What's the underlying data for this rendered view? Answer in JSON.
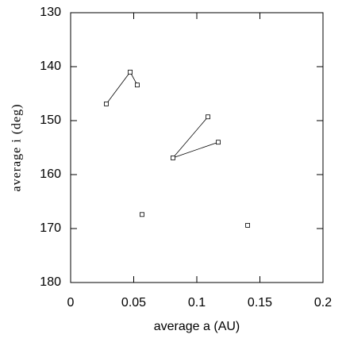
{
  "chart_data": {
    "type": "scatter",
    "x_label": "average a (AU)",
    "y_label": "average i (deg)",
    "xlim": [
      0,
      0.2
    ],
    "xticks": [
      0,
      0.05,
      0.1,
      0.15,
      0.2
    ],
    "ylim": [
      180,
      130
    ],
    "yticks": [
      130,
      140,
      150,
      160,
      170,
      180
    ],
    "color": "#000000",
    "series": [
      {
        "x": [
          0.0283,
          0.0472,
          0.0528
        ],
        "values": [
          146.9,
          141.0,
          143.4
        ],
        "connected": true
      },
      {
        "x": [
          0.1088,
          0.0811,
          0.117
        ],
        "values": [
          149.3,
          156.9,
          154.0
        ],
        "connected": true
      },
      {
        "x": [
          0.0566
        ],
        "values": [
          167.4
        ],
        "connected": false
      },
      {
        "x": [
          0.1403
        ],
        "values": [
          169.4
        ],
        "connected": false
      }
    ]
  }
}
